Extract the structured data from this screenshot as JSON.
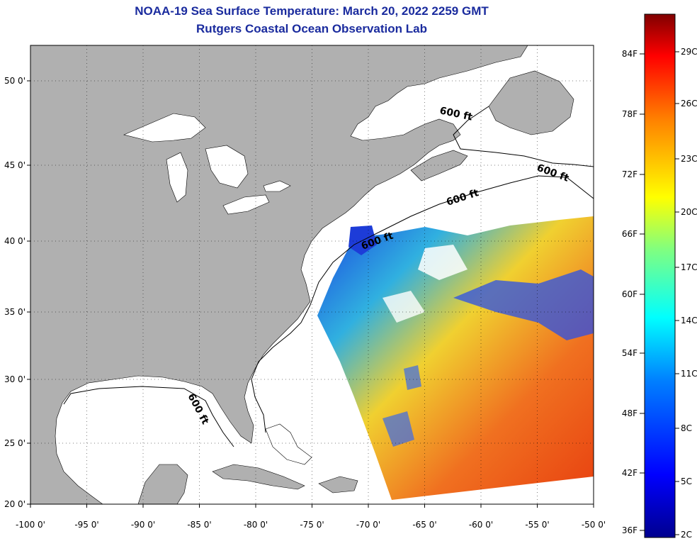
{
  "title": {
    "line1": "NOAA-19 Sea Surface Temperature:  March 20, 2022 2259 GMT",
    "line2": "Rutgers Coastal Ocean Observation Lab"
  },
  "map": {
    "lon_range": [
      -100,
      -50
    ],
    "lat_range": [
      20,
      52.5
    ],
    "lon_ticks": [
      "-100 0'",
      "-95 0'",
      "-90 0'",
      "-85 0'",
      "-80 0'",
      "-75 0'",
      "-70 0'",
      "-65 0'",
      "-60 0'",
      "-55 0'",
      "-50 0'"
    ],
    "lat_ticks": [
      "50 0'",
      "45 0'",
      "40 0'",
      "35 0'",
      "30 0'",
      "25 0'",
      "20 0'"
    ],
    "contour_labels": [
      "600 ft",
      "600 ft",
      "600 ft",
      "600 ft",
      "600 ft"
    ],
    "land_color": "#b0b0b0",
    "no_data_color": "#ffffff"
  },
  "colorbar": {
    "fahrenheit": [
      "84F",
      "78F",
      "72F",
      "66F",
      "60F",
      "54F",
      "48F",
      "42F",
      "36F"
    ],
    "celsius": [
      "29C",
      "26C",
      "23C",
      "20C",
      "17C",
      "14C",
      "11C",
      "8C",
      "5C",
      "2C"
    ],
    "gradient": [
      "#00008f",
      "#0000ff",
      "#0080ff",
      "#00ffff",
      "#80ff80",
      "#ffff00",
      "#ff8000",
      "#ff0000",
      "#800000"
    ]
  }
}
